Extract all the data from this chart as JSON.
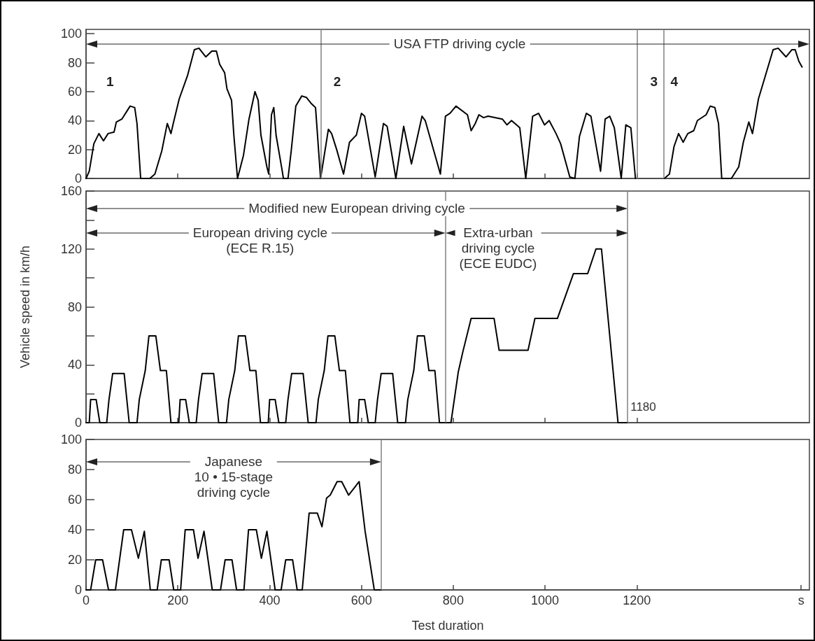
{
  "chart_data": [
    {
      "type": "line",
      "color": "#000000",
      "marker": "none",
      "line_style": "solid",
      "tick_labels": "y",
      "xlim": [
        0,
        1576
      ],
      "xticks": [
        0,
        200,
        400,
        600,
        800,
        1000,
        1200
      ],
      "ylim": [
        0,
        103
      ],
      "yticks": [
        0,
        20,
        40,
        60,
        80,
        100
      ],
      "x": [
        0,
        7,
        17,
        28,
        38,
        48,
        61,
        66,
        78,
        96,
        106,
        111,
        119,
        139,
        150,
        165,
        177,
        185,
        190,
        203,
        221,
        236,
        246,
        261,
        274,
        284,
        291,
        302,
        307,
        317,
        322,
        330,
        343,
        355,
        368,
        375,
        381,
        394,
        398,
        404,
        409,
        414,
        427,
        430,
        440,
        447,
        457,
        470,
        480,
        490,
        500,
        511,
        528,
        535,
        546,
        561,
        574,
        589,
        600,
        607,
        630,
        648,
        656,
        675,
        692,
        709,
        732,
        739,
        772,
        783,
        793,
        806,
        831,
        839,
        848,
        856,
        866,
        876,
        907,
        917,
        927,
        945,
        958,
        973,
        986,
        999,
        1009,
        1024,
        1034,
        1054,
        1065,
        1075,
        1090,
        1100,
        1121,
        1131,
        1141,
        1151,
        1166,
        1176,
        1187,
        1197,
        1230,
        1260,
        1271,
        1281,
        1291,
        1301,
        1311,
        1324,
        1332,
        1351,
        1360,
        1370,
        1378,
        1385,
        1406,
        1422,
        1432,
        1444,
        1452,
        1465,
        1482,
        1497,
        1508,
        1525,
        1538,
        1545,
        1553,
        1560
      ],
      "values": [
        0,
        5,
        24,
        31,
        26,
        31,
        32,
        39,
        41,
        50,
        49,
        38,
        0,
        0,
        3,
        19,
        38,
        31,
        38,
        55,
        71,
        89,
        90,
        84,
        88,
        88,
        79,
        73,
        62,
        54,
        30,
        0,
        16,
        41,
        60,
        54,
        30,
        8,
        3,
        44,
        49,
        30,
        6,
        0,
        0,
        19,
        50,
        57,
        56,
        52,
        49,
        0,
        34,
        31,
        20,
        3,
        25,
        30,
        45,
        43,
        1,
        38,
        36,
        0,
        36,
        10,
        43,
        40,
        3,
        43,
        45,
        50,
        44,
        33,
        38,
        44,
        42,
        43,
        41,
        37,
        40,
        35,
        0,
        43,
        45,
        37,
        40,
        31,
        24,
        1,
        0,
        29,
        45,
        43,
        5,
        41,
        43,
        35,
        0,
        37,
        35,
        0,
        null,
        0,
        3,
        22,
        31,
        25,
        31,
        33,
        40,
        44,
        50,
        49,
        38,
        0,
        0,
        8,
        25,
        39,
        31,
        55,
        73,
        89,
        90,
        84,
        89,
        89,
        81,
        77
      ],
      "ref_lines": [
        {
          "axis": "x",
          "value": 511,
          "color": "#808080"
        },
        {
          "axis": "x",
          "value": 1200,
          "color": "#808080"
        },
        {
          "axis": "x",
          "value": 1258,
          "color": "#808080"
        }
      ],
      "annotations": [
        "USA FTP driving cycle",
        "1",
        "2",
        "3",
        "4"
      ]
    },
    {
      "type": "line",
      "color": "#000000",
      "marker": "none",
      "line_style": "solid",
      "tick_labels": "y",
      "ylabel": "Vehicle speed in km/h",
      "xlim": [
        0,
        1576
      ],
      "xticks": [
        0,
        200,
        400,
        600,
        800,
        1000,
        1200
      ],
      "ylim": [
        0,
        160
      ],
      "yticks": [
        0,
        {
          "value": 20,
          "label": null
        },
        40,
        {
          "value": 60,
          "label": null
        },
        80,
        {
          "value": 100,
          "label": null
        },
        120,
        {
          "value": 140,
          "label": null
        },
        160
      ],
      "x": [
        0,
        7,
        10,
        22,
        30,
        45,
        50,
        58,
        83,
        94,
        111,
        116,
        129,
        137,
        152,
        162,
        175,
        185,
        195,
        202,
        205,
        217,
        225,
        240,
        245,
        253,
        278,
        289,
        306,
        311,
        324,
        332,
        347,
        357,
        370,
        380,
        390,
        397,
        400,
        412,
        420,
        435,
        440,
        448,
        473,
        484,
        501,
        506,
        519,
        527,
        542,
        552,
        565,
        575,
        585,
        592,
        595,
        607,
        615,
        630,
        635,
        643,
        668,
        679,
        696,
        701,
        714,
        722,
        737,
        747,
        760,
        770,
        780,
        795,
        811,
        821,
        839,
        889,
        900,
        963,
        978,
        1027,
        1062,
        1093,
        1111,
        1123,
        1159,
        1179
      ],
      "values": [
        0,
        0,
        16,
        16,
        0,
        0,
        16,
        34,
        34,
        0,
        0,
        16,
        36,
        60,
        60,
        36,
        36,
        0,
        0,
        0,
        16,
        16,
        0,
        0,
        16,
        34,
        34,
        0,
        0,
        16,
        36,
        60,
        60,
        36,
        36,
        0,
        0,
        0,
        16,
        16,
        0,
        0,
        16,
        34,
        34,
        0,
        0,
        16,
        36,
        60,
        60,
        36,
        36,
        0,
        0,
        0,
        16,
        16,
        0,
        0,
        16,
        34,
        34,
        0,
        0,
        16,
        36,
        60,
        60,
        36,
        36,
        0,
        0,
        0,
        35,
        49,
        72,
        72,
        50,
        50,
        72,
        72,
        103,
        103,
        120,
        120,
        0,
        0
      ],
      "ref_lines": [
        {
          "axis": "x",
          "value": 783,
          "color": "#808080"
        },
        {
          "axis": "x",
          "value": 1180,
          "color": "#808080"
        }
      ],
      "annotations": [
        "Modified new European driving cycle",
        "European driving cycle\n(ECE R.15)",
        "Extra-urban\ndriving cycle\n(ECE EUDC)",
        "1180"
      ]
    },
    {
      "type": "line",
      "color": "#000000",
      "marker": "none",
      "line_style": "solid",
      "xlabel": "Test duration",
      "xlim": [
        0,
        1576
      ],
      "xticks": [
        0,
        200,
        400,
        600,
        800,
        1000,
        1200,
        {
          "value": 1558,
          "label": "s"
        }
      ],
      "ylim": [
        0,
        100
      ],
      "yticks": [
        0,
        20,
        40,
        60,
        80,
        100
      ],
      "x": [
        0,
        10,
        21,
        36,
        49,
        64,
        82,
        99,
        114,
        127,
        140,
        155,
        164,
        181,
        191,
        206,
        216,
        234,
        244,
        257,
        275,
        293,
        303,
        318,
        328,
        344,
        354,
        371,
        382,
        394,
        412,
        425,
        435,
        450,
        460,
        471,
        486,
        504,
        514,
        524,
        532,
        547,
        557,
        572,
        595,
        608,
        628,
        643
      ],
      "values": [
        0,
        0,
        20,
        20,
        0,
        0,
        40,
        40,
        21,
        39,
        0,
        0,
        20,
        20,
        0,
        0,
        40,
        40,
        21,
        39,
        0,
        0,
        20,
        20,
        0,
        0,
        40,
        40,
        21,
        39,
        0,
        0,
        20,
        20,
        0,
        0,
        51,
        51,
        42,
        61,
        63,
        72,
        72,
        63,
        72,
        39,
        0,
        0
      ],
      "ref_lines": [
        {
          "axis": "x",
          "value": 643,
          "color": "#808080"
        }
      ],
      "annotations": [
        "Japanese\n10 • 15-stage\ndriving cycle"
      ]
    }
  ]
}
